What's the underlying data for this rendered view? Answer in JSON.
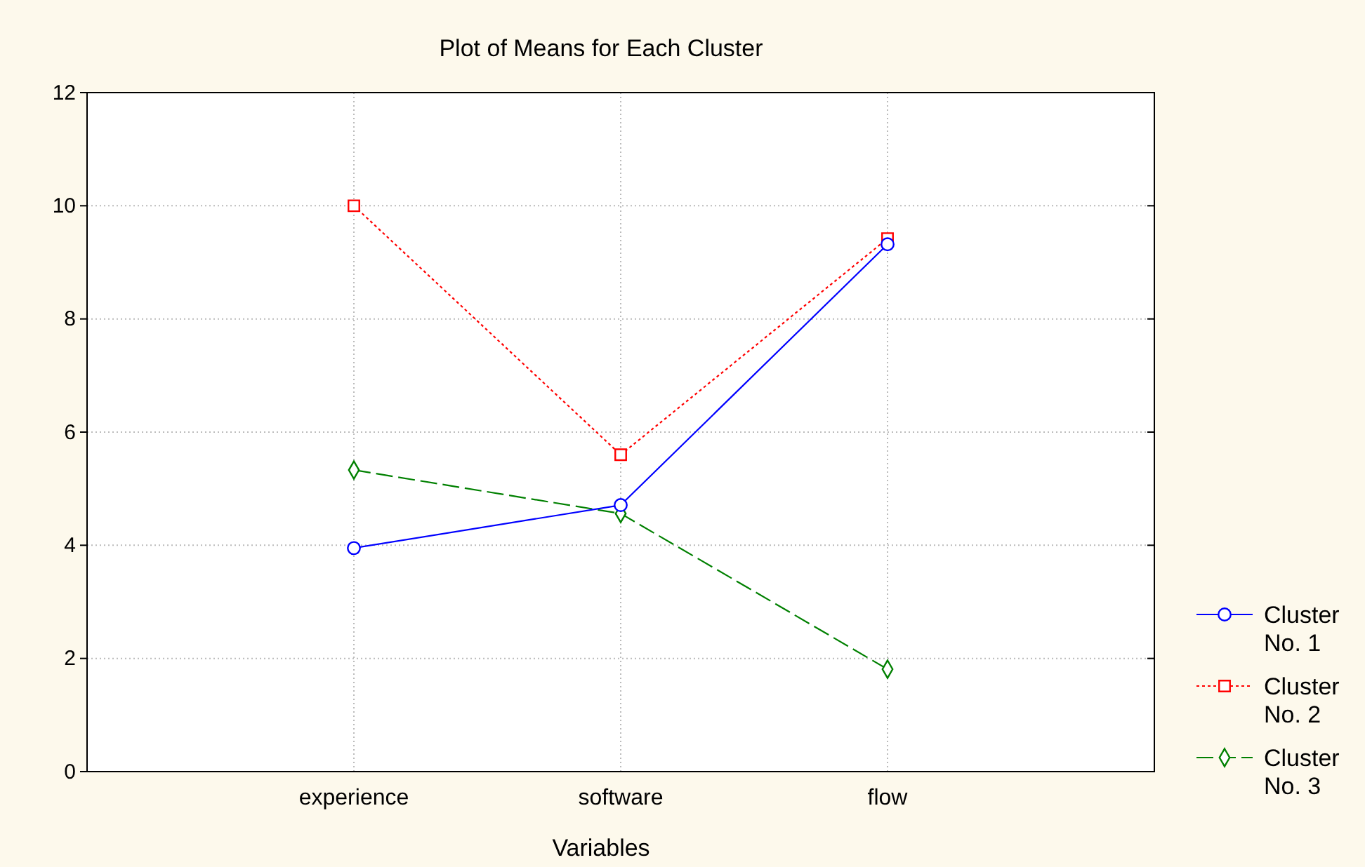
{
  "chart_data": {
    "type": "line",
    "title": "Plot of Means for Each Cluster",
    "xlabel": "Variables",
    "categories": [
      "experience",
      "software",
      "flow"
    ],
    "series": [
      {
        "name": "Cluster No. 1",
        "color": "#0000ff",
        "values": [
          3.95,
          4.71,
          9.32
        ],
        "marker": "circle",
        "line_style": "solid"
      },
      {
        "name": "Cluster No. 2",
        "color": "#ff0000",
        "values": [
          10.0,
          5.6,
          9.42
        ],
        "marker": "square",
        "line_style": "dotted"
      },
      {
        "name": "Cluster No. 3",
        "color": "#008000",
        "values": [
          5.33,
          4.56,
          1.81
        ],
        "marker": "diamond",
        "line_style": "dashed"
      }
    ],
    "ylim": [
      0,
      12
    ],
    "yticks": [
      0,
      2,
      4,
      6,
      8,
      10,
      12
    ],
    "grid": true,
    "legend": "right"
  }
}
